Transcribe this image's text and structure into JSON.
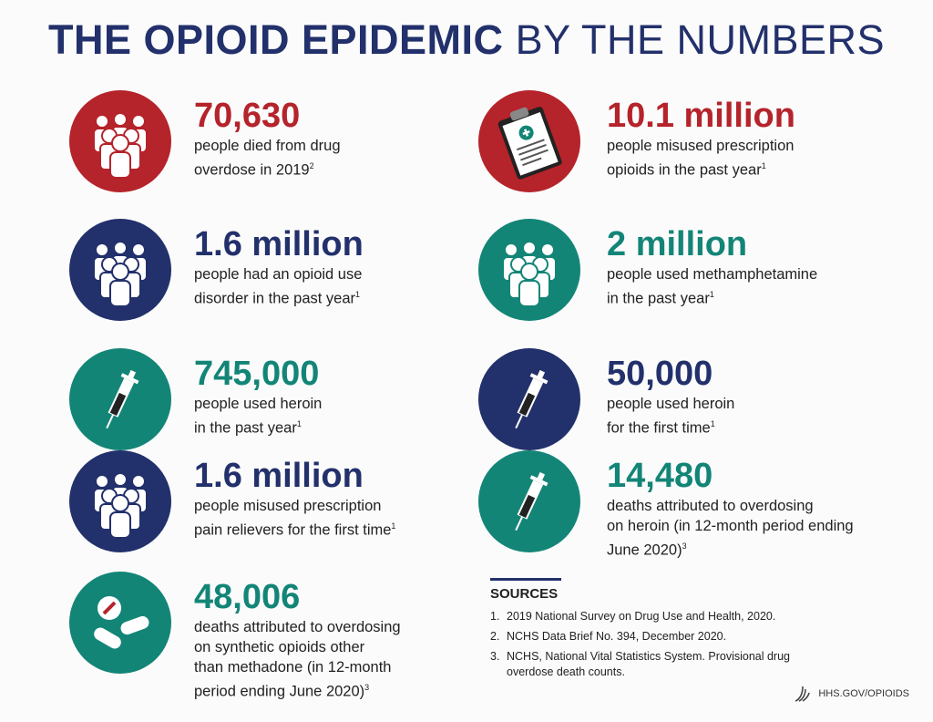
{
  "header": {
    "title_bold": "THE OPIOID EPIDEMIC",
    "title_light": "BY THE NUMBERS"
  },
  "left_column": [
    {
      "number": "70,630",
      "color": "#b5232b",
      "lines": [
        "people died from drug",
        "overdose in 2019"
      ],
      "note": "2"
    },
    {
      "number": "1.6 million",
      "color": "#22306b",
      "lines": [
        "people had an opioid use",
        "disorder in the past year"
      ],
      "note": "1"
    },
    {
      "number": "745,000",
      "color": "#138577",
      "lines": [
        "people used heroin",
        "in the past year"
      ],
      "note": "1"
    },
    {
      "number": "1.6 million",
      "color": "#22306b",
      "lines": [
        "people misused prescription",
        "pain relievers for the first time"
      ],
      "note": "1"
    },
    {
      "number": "48,006",
      "color": "#138577",
      "lines": [
        "deaths attributed to overdosing",
        "on synthetic opioids other",
        "than methadone (in 12-month",
        "period ending June 2020)"
      ],
      "note": "3"
    }
  ],
  "right_column": [
    {
      "number": "10.1 million",
      "color": "#b5232b",
      "lines": [
        "people misused prescription",
        "opioids in the past year"
      ],
      "note": "1"
    },
    {
      "number": "2 million",
      "color": "#138577",
      "lines": [
        "people used methamphetamine",
        "in the past year"
      ],
      "note": "1"
    },
    {
      "number": "50,000",
      "color": "#22306b",
      "lines": [
        "people used heroin",
        "for the first time"
      ],
      "note": "1"
    },
    {
      "number": "14,480",
      "color": "#138577",
      "lines": [
        "deaths attributed to overdosing",
        "on heroin (in 12-month period ending",
        "June 2020)"
      ],
      "note": "3"
    }
  ],
  "sources": {
    "heading": "SOURCES",
    "items": [
      {
        "marker": "1.",
        "text": "2019 National Survey on Drug Use and Health, 2020."
      },
      {
        "marker": "2.",
        "text": "NCHS Data Brief No. 394, December 2020."
      },
      {
        "marker": "3.",
        "text": "NCHS, National Vital Statistics System. Provisional drug overdose death counts."
      }
    ]
  },
  "footer": {
    "site": "HHS.GOV/OPIOIDS"
  }
}
